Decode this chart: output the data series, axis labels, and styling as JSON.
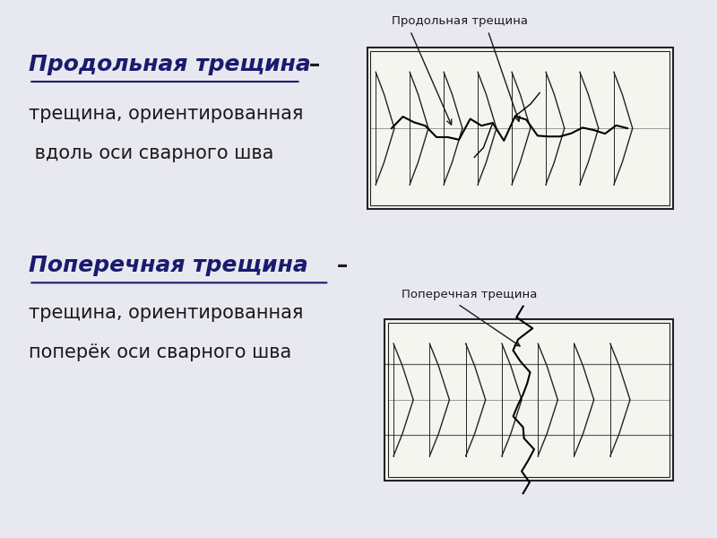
{
  "bg_color": "#e8e8f0",
  "title1_bold": "Продольная трещина",
  "title1_suffix": " –",
  "desc1_line1": "трещина, ориентированная",
  "desc1_line2": " вдоль оси сварного шва",
  "title2_bold": "Поперечная трещина",
  "title2_suffix": " –",
  "desc2_line1": "трещина, ориентированная",
  "desc2_line2": "поперёк оси сварного шва",
  "img1_label": "Продольная трещина",
  "img2_label": "Поперечная трещина",
  "text_color": "#1a1a6e",
  "dark_color": "#1a1a1a",
  "line_color": "#222222"
}
